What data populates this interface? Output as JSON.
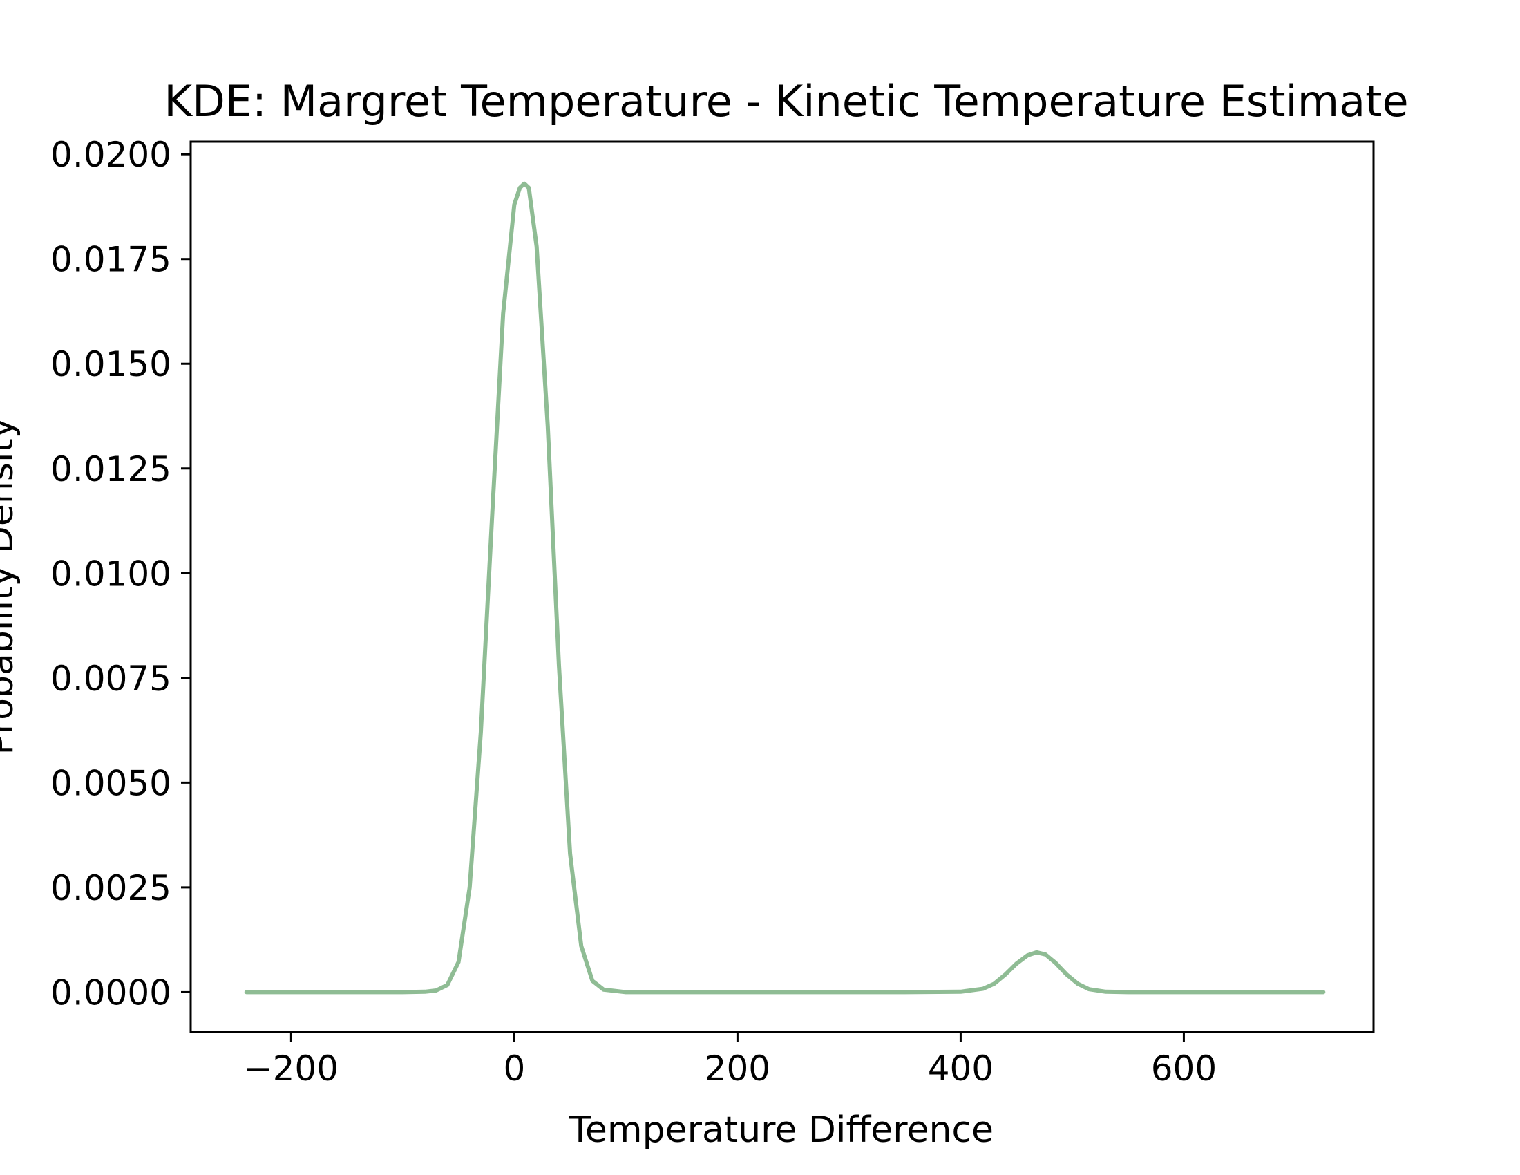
{
  "chart_data": {
    "type": "line",
    "title": "KDE: Margret Temperature - Kinetic Temperature Estimate",
    "xlabel": "Temperature Difference",
    "ylabel": "Probability Density",
    "xlim": [
      -290,
      770
    ],
    "ylim": [
      -0.00095,
      0.0203
    ],
    "xticks": [
      -200,
      0,
      200,
      400,
      600
    ],
    "xtick_labels": [
      "−200",
      "0",
      "200",
      "400",
      "600"
    ],
    "yticks": [
      0,
      0.0025,
      0.005,
      0.0075,
      0.01,
      0.0125,
      0.015,
      0.0175,
      0.02
    ],
    "ytick_labels": [
      "0.0000",
      "0.0025",
      "0.0050",
      "0.0075",
      "0.0100",
      "0.0125",
      "0.0150",
      "0.0175",
      "0.0200"
    ],
    "grid": false,
    "legend": false,
    "line_color": "#8fbc94",
    "series": [
      {
        "x": [
          -240,
          -200,
          -150,
          -100,
          -80,
          -70,
          -60,
          -50,
          -40,
          -30,
          -20,
          -10,
          0,
          5,
          9,
          13,
          20,
          30,
          40,
          50,
          60,
          70,
          80,
          100,
          150,
          200,
          250,
          300,
          350,
          400,
          420,
          430,
          440,
          450,
          460,
          468,
          476,
          485,
          495,
          505,
          515,
          530,
          550,
          600,
          650,
          700,
          725
        ],
        "y": [
          0,
          0,
          0,
          0,
          1e-05,
          4e-05,
          0.00017,
          0.00072,
          0.0025,
          0.0062,
          0.0113,
          0.0162,
          0.0188,
          0.0192,
          0.0193,
          0.0192,
          0.0178,
          0.0135,
          0.0078,
          0.0033,
          0.0011,
          0.00027,
          6e-05,
          0,
          0,
          0,
          0,
          0,
          0,
          1e-05,
          8e-05,
          0.0002,
          0.00042,
          0.00068,
          0.00088,
          0.00095,
          0.0009,
          0.0007,
          0.00042,
          0.0002,
          7e-05,
          1e-05,
          0,
          0,
          0,
          0,
          0
        ]
      }
    ]
  }
}
